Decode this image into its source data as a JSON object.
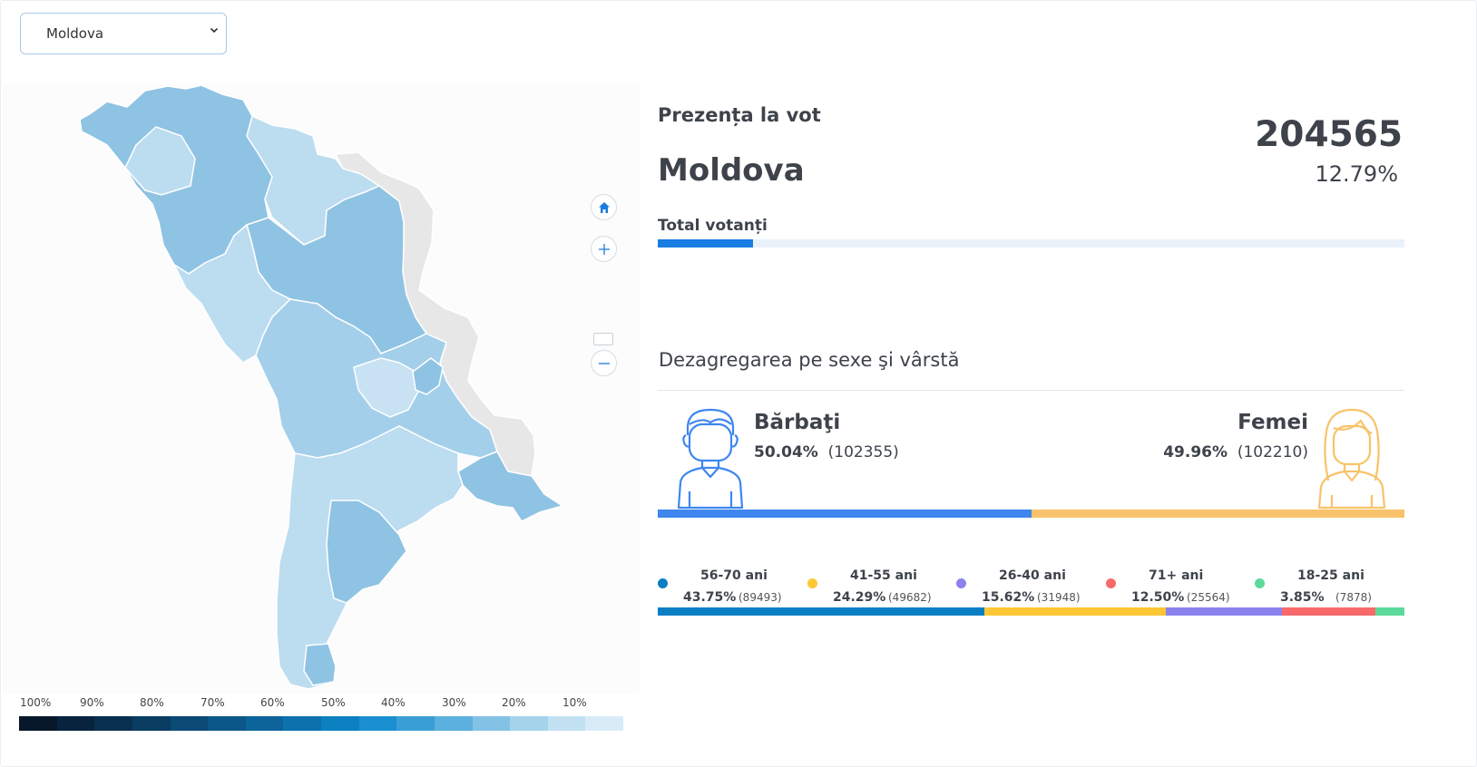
{
  "region_select": {
    "value": "Moldova"
  },
  "map": {
    "legend_labels": [
      "100%",
      "90%",
      "80%",
      "70%",
      "60%",
      "50%",
      "40%",
      "30%",
      "20%",
      "10%"
    ],
    "legend_colors": [
      "#06182a",
      "#07233d",
      "#08304f",
      "#093d62",
      "#0a4a75",
      "#0b5788",
      "#0c649b",
      "#0d71ae",
      "#0d80c2",
      "#1a8fd0",
      "#3a9ed6",
      "#5cb0de",
      "#82c2e5",
      "#a6d3ec",
      "#c2e1f2",
      "#d8ecf8"
    ],
    "colors": {
      "dark": "#8fc3e3",
      "mid": "#a3cfea",
      "light": "#bcdcf0",
      "grey": "#e7e7e7"
    },
    "controls": {
      "home": "home-icon",
      "zoom_in": "plus-icon",
      "zoom_out": "minus-icon"
    }
  },
  "turnout": {
    "label": "Prezența la vot",
    "region": "Moldova",
    "count": "204565",
    "percent": "12.79%",
    "percent_value": 12.79,
    "total_label": "Total votanți",
    "accent": "#1a7de3"
  },
  "breakdown": {
    "title": "Dezagregarea pe sexe şi vârstă",
    "men": {
      "label": "Bărbaţi",
      "percent": "50.04%",
      "count": "(102355)",
      "value": 50.04,
      "color": "#3f86ef"
    },
    "women": {
      "label": "Femei",
      "percent": "49.96%",
      "count": "(102210)",
      "value": 49.96,
      "color": "#f8c36a"
    },
    "ages": [
      {
        "name": "56-70 ani",
        "percent": "43.75%",
        "count": "(89493)",
        "value": 43.75,
        "color": "#0b7fc4"
      },
      {
        "name": "41-55 ani",
        "percent": "24.29%",
        "count": "(49682)",
        "value": 24.29,
        "color": "#fcc733"
      },
      {
        "name": "26-40 ani",
        "percent": "15.62%",
        "count": "(31948)",
        "value": 15.62,
        "color": "#8b82f0"
      },
      {
        "name": "71+ ani",
        "percent": "12.50%",
        "count": "(25564)",
        "value": 12.5,
        "color": "#f86a6a"
      },
      {
        "name": "18-25 ani",
        "percent": "3.85%",
        "count": "(7878)",
        "value": 3.85,
        "color": "#5dd99a"
      }
    ]
  }
}
